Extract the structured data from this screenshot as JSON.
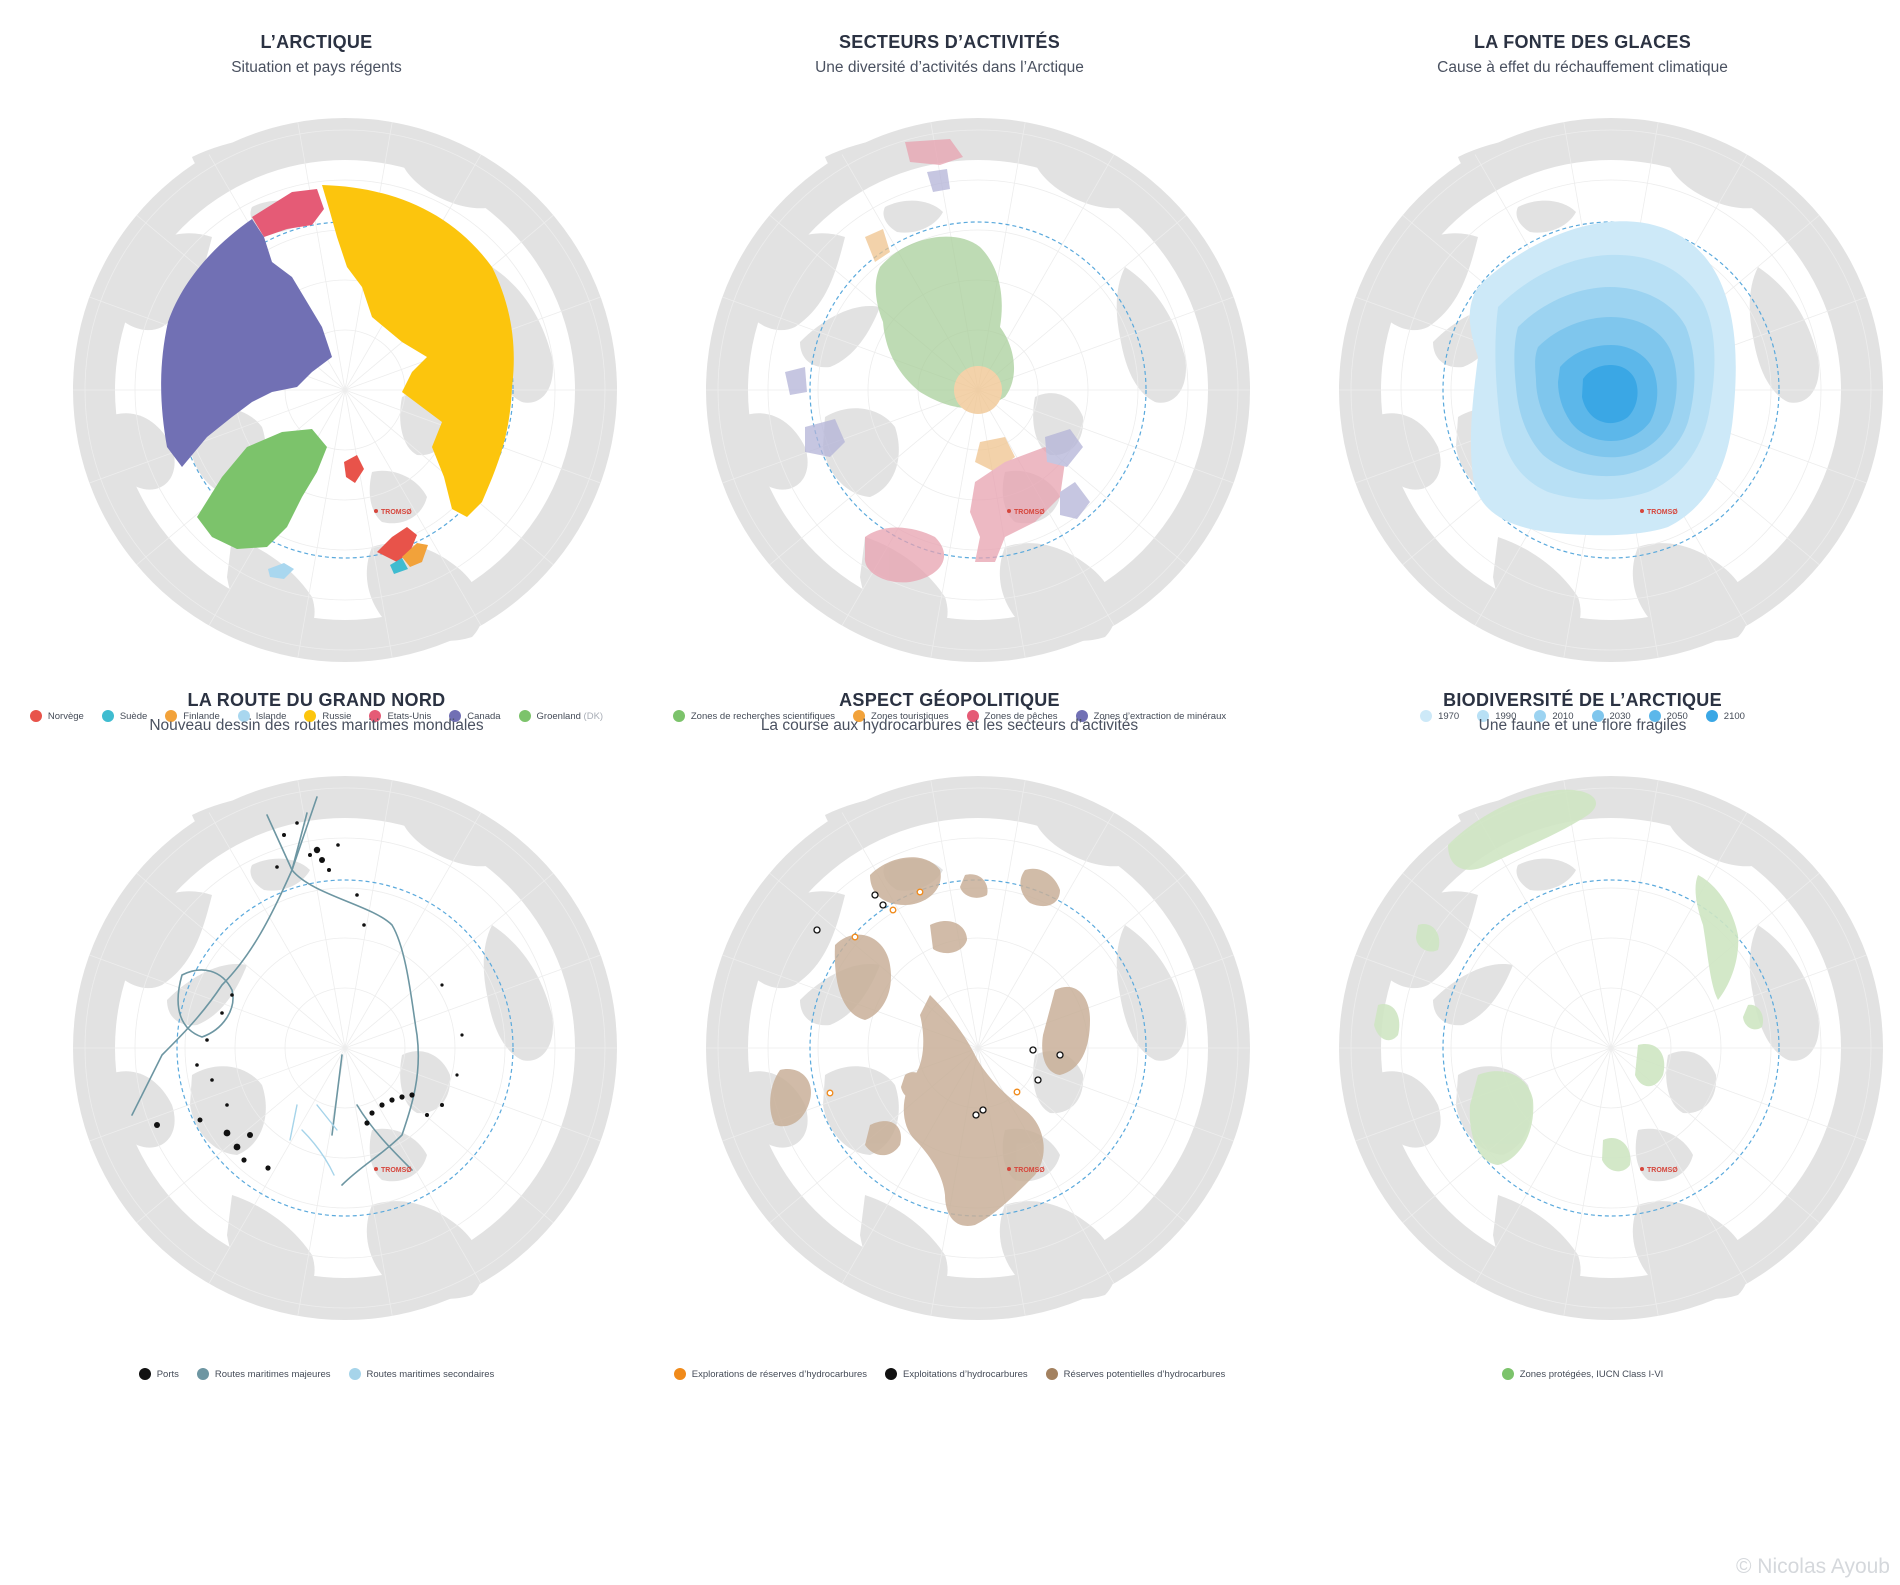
{
  "colors": {
    "land": "#e2e2e2",
    "ocean": "#ffffff",
    "grid": "#ededed",
    "circle": "#5aa9dc",
    "norvege": "#e8534a",
    "suede": "#3fbcd0",
    "finlande": "#f2a23a",
    "islande": "#a9d7ef",
    "russie": "#fcc50d",
    "etats_unis": "#e55b76",
    "canada": "#7170b4",
    "groenland": "#7cc36b",
    "research": "#a9cf9b",
    "tourism": "#f0c48e",
    "fishing": "#e8a2b0",
    "minerals": "#b4b4d8",
    "ice_1970": "#cde9f8",
    "ice_1990": "#b8e0f5",
    "ice_2010": "#9cd3f1",
    "ice_2030": "#7fc6ed",
    "ice_2050": "#5cb7ea",
    "ice_2100": "#3aa7e5",
    "ports": "#111111",
    "major_routes": "#6d96a2",
    "secondary_routes": "#a6d4ea",
    "exploration": "#f08a1a",
    "exploitation": "#111111",
    "reserves": "#a3815f",
    "protected": "#9dd08a"
  },
  "city": "TROMSØ",
  "copyright": "© Nicolas Ayoub",
  "panels": [
    {
      "title": "L’ARCTIQUE",
      "subtitle": "Situation et pays régents",
      "legend": [
        {
          "label": "Norvège",
          "color": "#e8534a"
        },
        {
          "label": "Suède",
          "color": "#3fbcd0"
        },
        {
          "label": "Finlande",
          "color": "#f2a23a"
        },
        {
          "label": "Islande",
          "color": "#a9d7ef"
        },
        {
          "label": "Russie",
          "color": "#fcc50d"
        },
        {
          "label": "Etats-Unis",
          "color": "#e55b76"
        },
        {
          "label": "Canada",
          "color": "#7170b4"
        },
        {
          "label": "Groenland",
          "suffix": "(DK)",
          "color": "#7cc36b"
        }
      ]
    },
    {
      "title": "SECTEURS D’ACTIVITÉS",
      "subtitle": "Une diversité d’activités dans l’Arctique",
      "legend": [
        {
          "label": "Zones de recherches scientifiques",
          "color": "#7cc36b"
        },
        {
          "label": "Zones touristiques",
          "color": "#f2a23a"
        },
        {
          "label": "Zones de pêches",
          "color": "#e55b76"
        },
        {
          "label": "Zones d’extraction de minéraux",
          "color": "#7170b4"
        }
      ]
    },
    {
      "title": "LA FONTE DES GLACES",
      "subtitle": "Cause à effet du réchauffement climatique",
      "legend": [
        {
          "label": "1970",
          "color": "#cde9f8"
        },
        {
          "label": "1990",
          "color": "#b8e0f5"
        },
        {
          "label": "2010",
          "color": "#9cd3f1"
        },
        {
          "label": "2030",
          "color": "#7fc6ed"
        },
        {
          "label": "2050",
          "color": "#5cb7ea"
        },
        {
          "label": "2100",
          "color": "#3aa7e5"
        }
      ]
    },
    {
      "title": "LA ROUTE DU GRAND NORD",
      "subtitle": "Nouveau dessin des routes maritimes mondiales",
      "legend": [
        {
          "label": "Ports",
          "color": "#111111"
        },
        {
          "label": "Routes maritimes majeures",
          "color": "#6d96a2"
        },
        {
          "label": "Routes maritimes secondaires",
          "color": "#a6d4ea"
        }
      ]
    },
    {
      "title": "ASPECT GÉOPOLITIQUE",
      "subtitle": "La course aux hydrocarbures et les secteurs d’activités",
      "legend": [
        {
          "label": "Explorations de réserves d’hydrocarbures",
          "color": "#f08a1a"
        },
        {
          "label": "Exploitations d’hydrocarbures",
          "color": "#111111"
        },
        {
          "label": "Réserves potentielles d’hydrocarbures",
          "color": "#a3815f"
        }
      ]
    },
    {
      "title": "BIODIVERSITÉ DE L’ARCTIQUE",
      "subtitle": "Une faune et une flore fragiles",
      "legend": [
        {
          "label": "Zones protégées, IUCN Class I-VI",
          "color": "#7cc36b"
        }
      ]
    }
  ]
}
